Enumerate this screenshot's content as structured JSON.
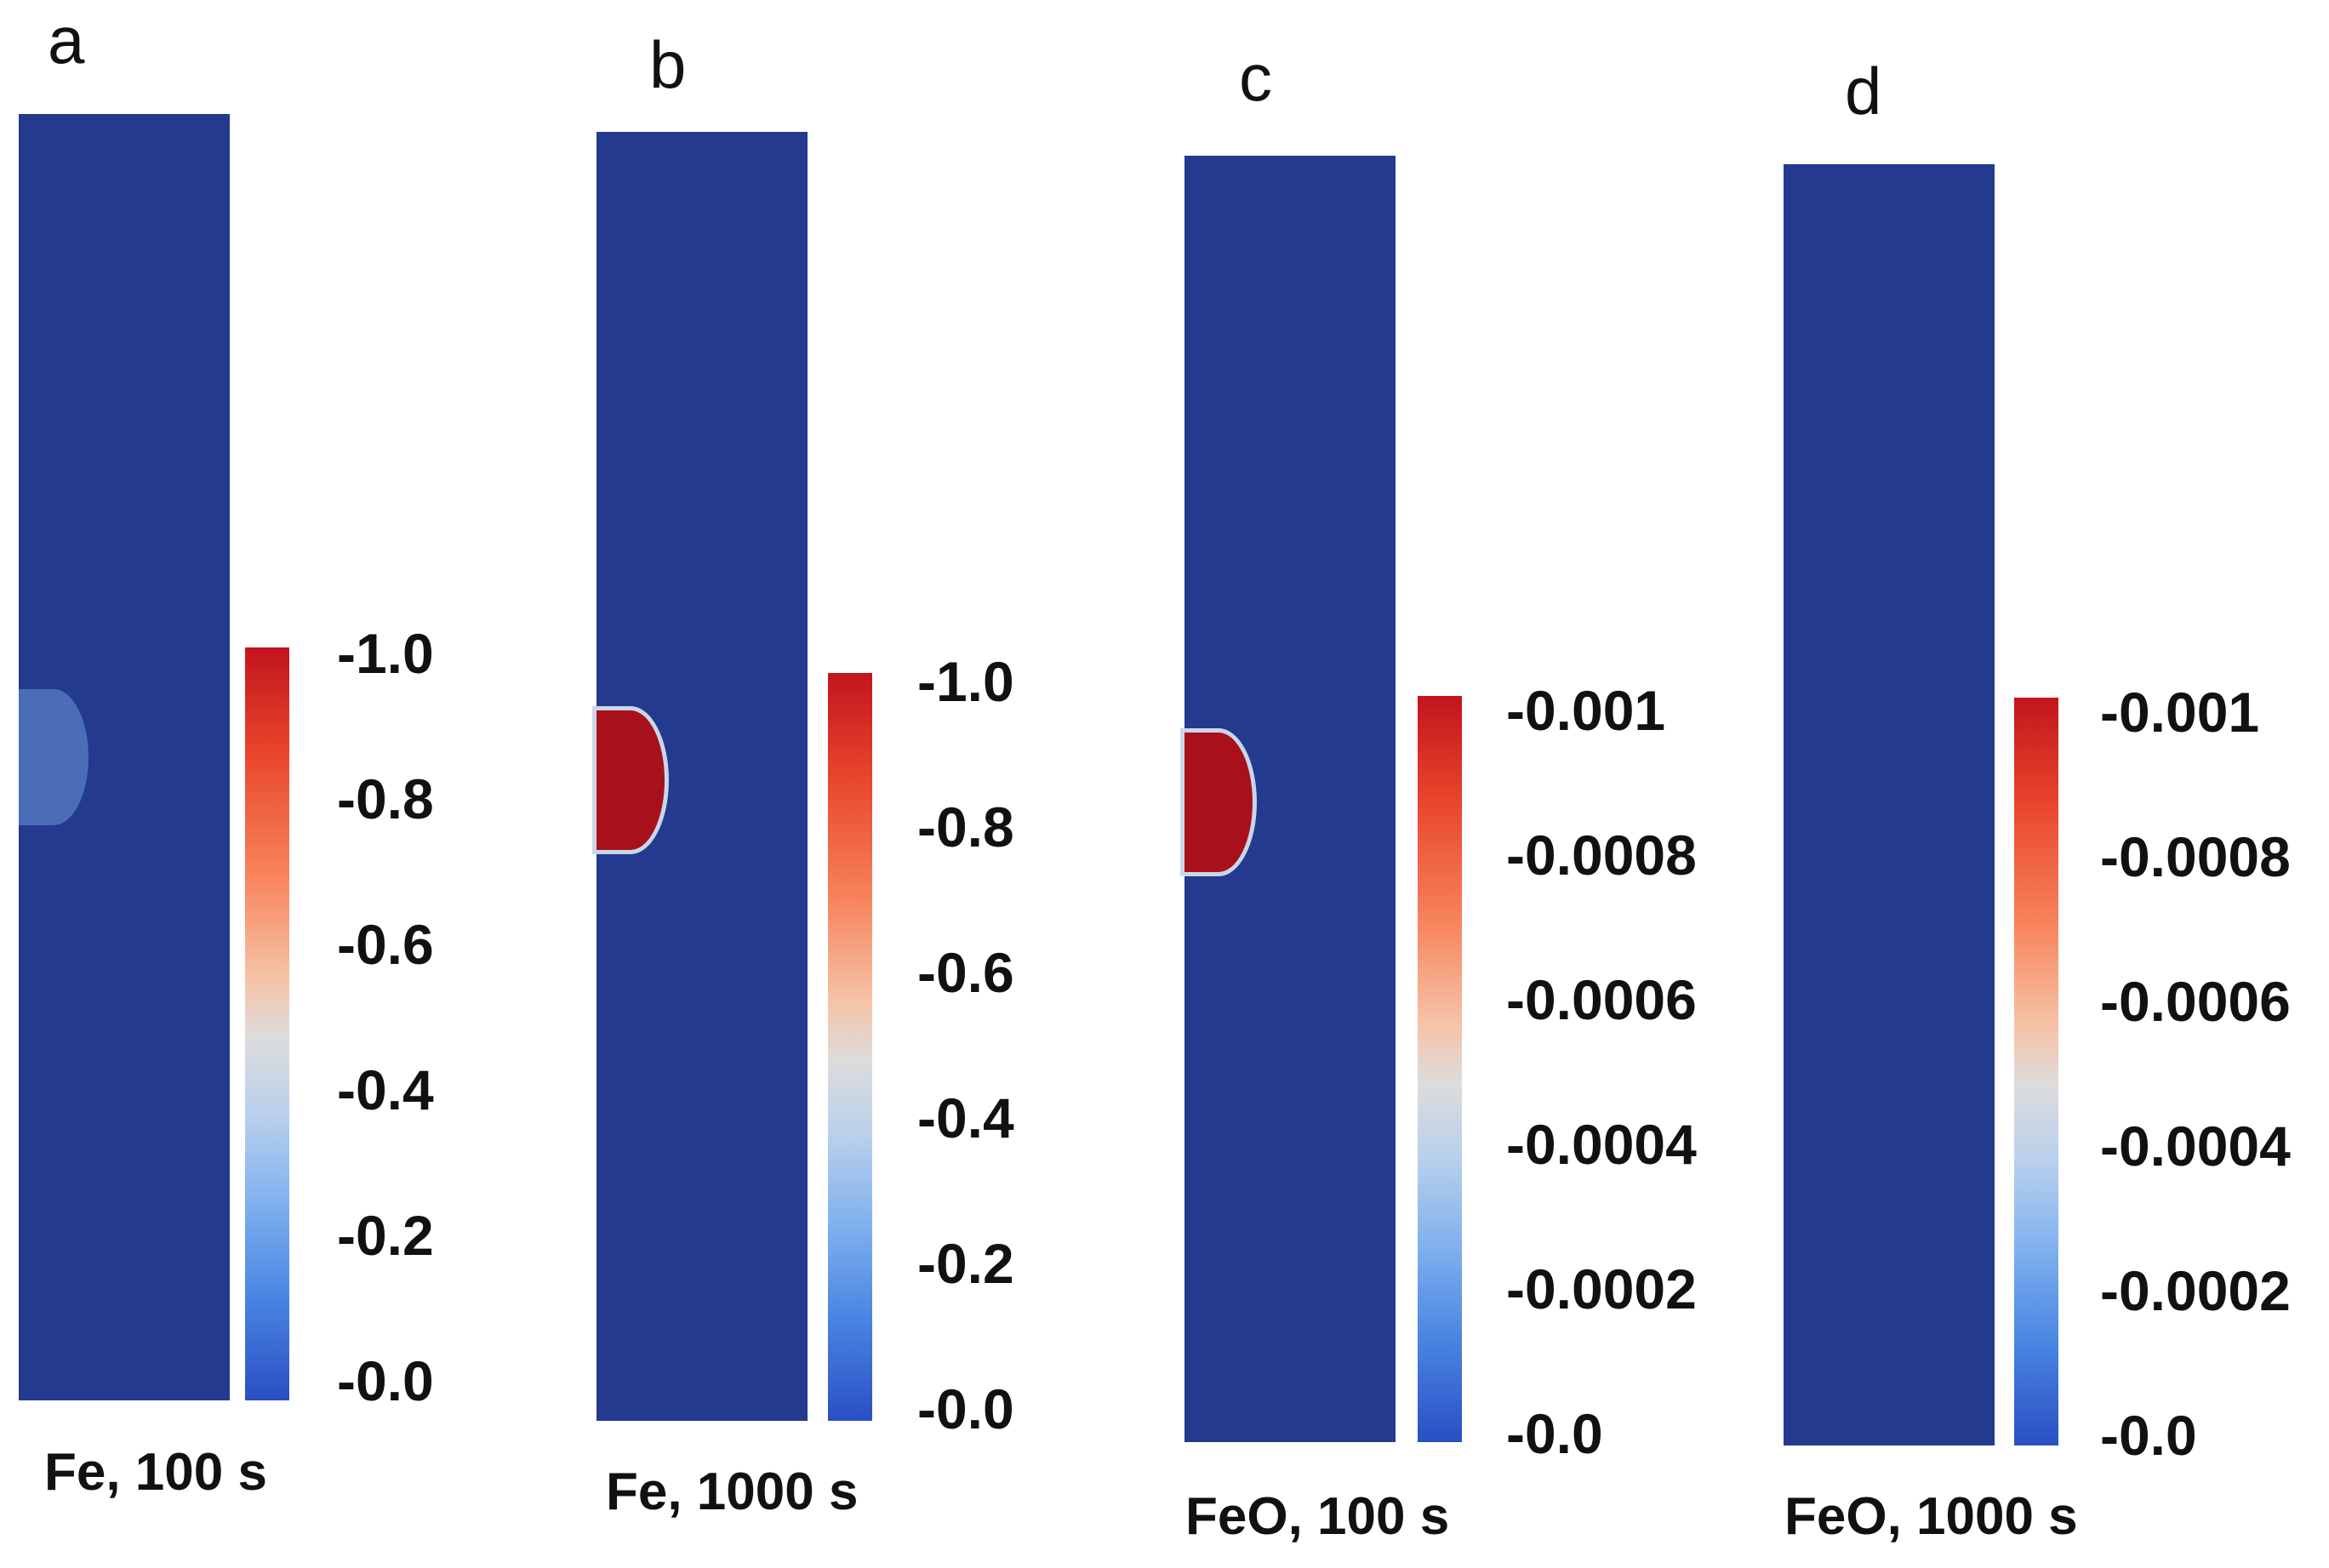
{
  "panels": [
    {
      "letter": "a",
      "caption": "Fe, 100 s",
      "colorbar_ticks": [
        "-1.0",
        "-0.8",
        "-0.6",
        "-0.4",
        "-0.2",
        "-0.0"
      ],
      "inclusion": "faint"
    },
    {
      "letter": "b",
      "caption": "Fe, 1000 s",
      "colorbar_ticks": [
        "-1.0",
        "-0.8",
        "-0.6",
        "-0.4",
        "-0.2",
        "-0.0"
      ],
      "inclusion": "hot"
    },
    {
      "letter": "c",
      "caption": "FeO, 100 s",
      "colorbar_ticks": [
        "-0.001",
        "-0.0008",
        "-0.0006",
        "-0.0004",
        "-0.0002",
        "-0.0"
      ],
      "inclusion": "hot"
    },
    {
      "letter": "d",
      "caption": "FeO, 1000 s",
      "colorbar_ticks": [
        "-0.001",
        "-0.0008",
        "-0.0006",
        "-0.0004",
        "-0.0002",
        "-0.0"
      ],
      "inclusion": "none"
    }
  ],
  "colors": {
    "domain": "#233a8f",
    "inclusion_hot": "#a8101c",
    "inclusion_faint": "#4b6cb7",
    "colormap_high": "#c3141e",
    "colormap_mid": "#dcdcdc",
    "colormap_low": "#2a4fc4"
  }
}
